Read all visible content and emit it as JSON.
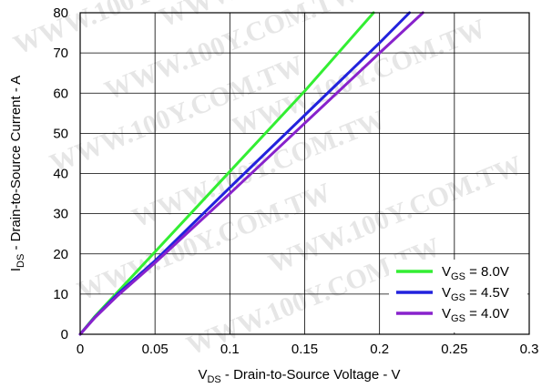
{
  "watermark": "WWW.100Y.COM.TW",
  "chart_data": {
    "type": "line",
    "xlabel": {
      "main": "V",
      "sub": "DS",
      "rest": " - Drain-to-Source Voltage - V"
    },
    "ylabel": {
      "main": "I",
      "sub": "DS",
      "rest": " - Drain-to-Source Current - A"
    },
    "xlim": [
      0,
      0.3
    ],
    "ylim": [
      0,
      80
    ],
    "x_ticks": [
      0,
      0.05,
      0.1,
      0.15,
      0.2,
      0.25,
      0.3
    ],
    "x_tick_labels": [
      "0",
      "0.05",
      "0.1",
      "0.15",
      "0.2",
      "0.25",
      "0.3"
    ],
    "y_ticks": [
      0,
      10,
      20,
      30,
      40,
      50,
      60,
      70,
      80
    ],
    "y_tick_labels": [
      "0",
      "10",
      "20",
      "30",
      "40",
      "50",
      "60",
      "70",
      "80"
    ],
    "grid": true,
    "legend_position": "bottom-right",
    "series": [
      {
        "name": {
          "main": "V",
          "sub": "GS",
          "rest": " = 8.0V"
        },
        "color": "#33ee33",
        "x": [
          0,
          0.01,
          0.025,
          0.05,
          0.1,
          0.15,
          0.196
        ],
        "y": [
          0,
          4.5,
          10.5,
          20.5,
          40.5,
          60.5,
          80
        ]
      },
      {
        "name": {
          "main": "V",
          "sub": "GS",
          "rest": " = 4.5V"
        },
        "color": "#2222dd",
        "x": [
          0,
          0.01,
          0.025,
          0.05,
          0.1,
          0.15,
          0.2,
          0.22
        ],
        "y": [
          0,
          4.3,
          10,
          18.3,
          36.5,
          54.5,
          72.5,
          80
        ]
      },
      {
        "name": {
          "main": "V",
          "sub": "GS",
          "rest": " = 4.0V"
        },
        "color": "#8822cc",
        "x": [
          0,
          0.01,
          0.025,
          0.05,
          0.1,
          0.15,
          0.2,
          0.229
        ],
        "y": [
          0,
          4.2,
          9.6,
          17.8,
          35,
          52.5,
          70,
          80
        ]
      }
    ]
  }
}
